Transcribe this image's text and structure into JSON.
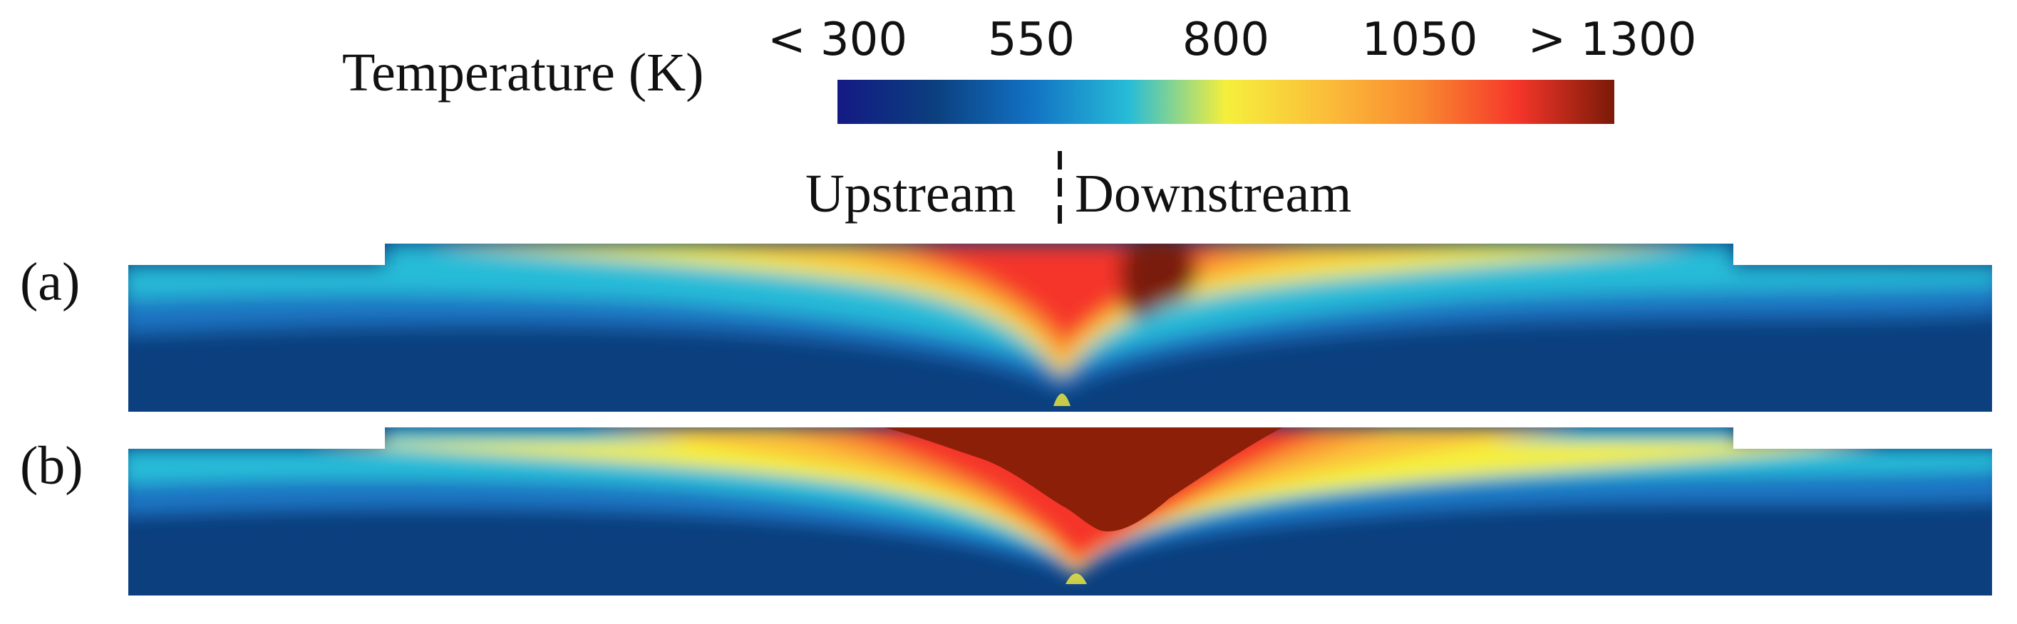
{
  "legend": {
    "title": "Temperature (K)",
    "ticks": [
      "< 300",
      "550",
      "800",
      "1050",
      "> 1300"
    ],
    "colormap": [
      "#141a84",
      "#0b3f7e",
      "#1272c4",
      "#27bcd8",
      "#f5ef3c",
      "#fbbf3a",
      "#f98a30",
      "#f5362a",
      "#7a1a08"
    ]
  },
  "direction": {
    "upstream": "Upstream",
    "downstream": "Downstream"
  },
  "panels": [
    {
      "label": "(a)"
    },
    {
      "label": "(b)"
    }
  ]
}
